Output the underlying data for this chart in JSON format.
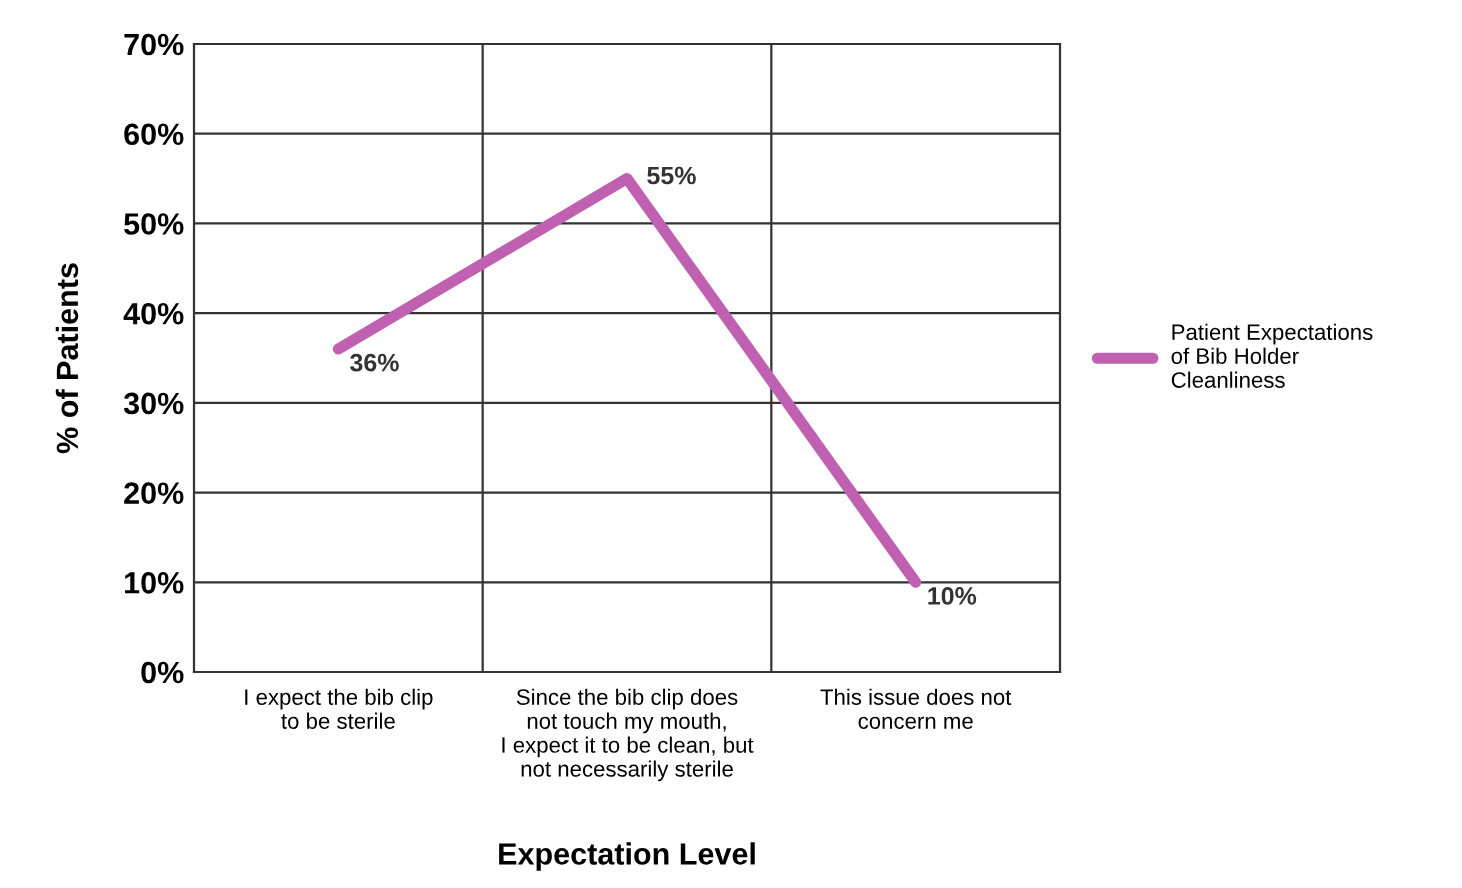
{
  "chart_data": {
    "type": "line",
    "xlabel": "Expectation Level",
    "ylabel": "% of Patients",
    "categories": [
      "I expect the bib clip\nto be sterile",
      "Since the bib clip does\nnot touch my mouth,\nI expect it to be clean, but\nnot necessarily sterile",
      "This issue does not\nconcern me"
    ],
    "series": [
      {
        "name": "Patient Expectations\nof Bib Holder\nCleanliness",
        "color": "#c060b0",
        "values": [
          36,
          55,
          10
        ],
        "value_labels": [
          "36%",
          "55%",
          "10%"
        ]
      }
    ],
    "ylim": [
      0,
      70
    ],
    "yticks": [
      {
        "value": 0,
        "label": "0%"
      },
      {
        "value": 10,
        "label": "10%"
      },
      {
        "value": 20,
        "label": "20%"
      },
      {
        "value": 30,
        "label": "30%"
      },
      {
        "value": 40,
        "label": "40%"
      },
      {
        "value": 50,
        "label": "50%"
      },
      {
        "value": 60,
        "label": "60%"
      },
      {
        "value": 70,
        "label": "70%"
      }
    ],
    "grid": true,
    "legend": "right",
    "marker": "none",
    "line_style": "solid"
  }
}
